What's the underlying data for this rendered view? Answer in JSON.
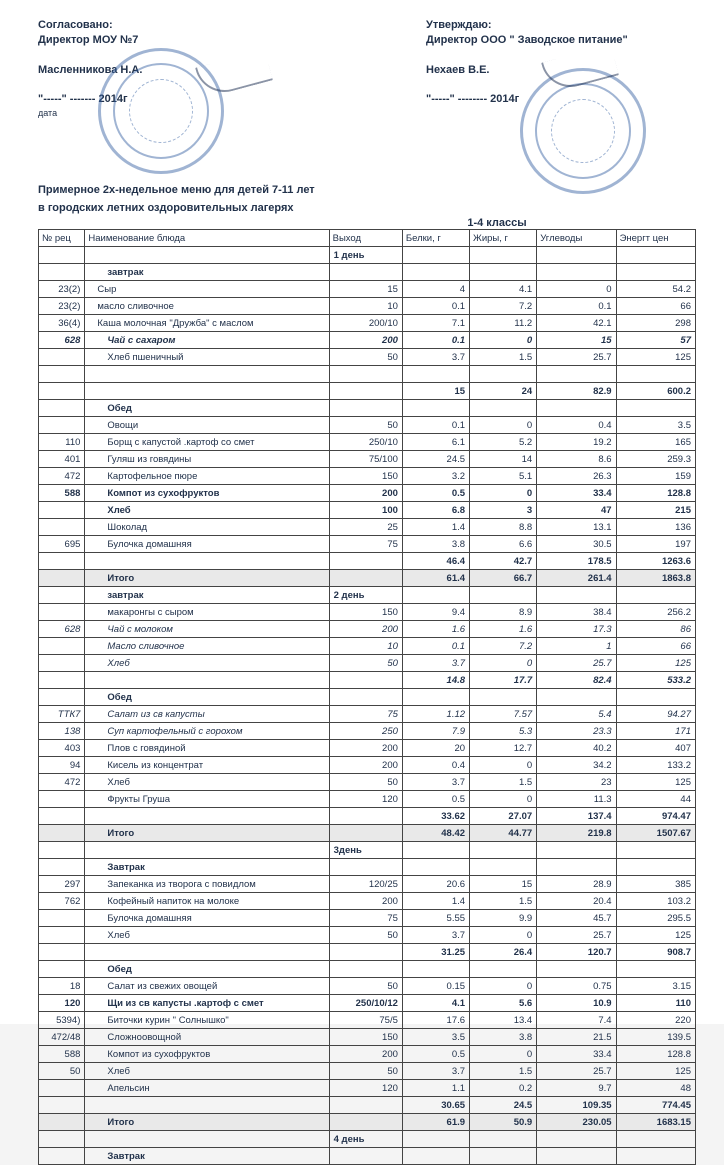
{
  "header": {
    "agreed_label": "Согласовано:",
    "director_mou": "Директор МОУ №7",
    "maslennikova": "Масленникова Н.А.",
    "date1": "\"-----\" ------- 2014г",
    "date_label": "дата",
    "approve_label": "Утверждаю:",
    "director_ooo": "Директор ООО \" Заводское питание\"",
    "nehaev": "Нехаев В.Е.",
    "date2": "\"-----\" -------- 2014г"
  },
  "titles": {
    "menu_line1": "Примерное 2х-недельное меню для детей 7-11 лет",
    "menu_line2": "в городских летних оздоровительных лагерях",
    "grade": "1-4 классы"
  },
  "columns": {
    "num": "№ рец",
    "name": "Наименование блюда",
    "out": "Выход",
    "p": "Белки, г",
    "f": "Жиры, г",
    "c": "Углеводы",
    "e": "Энергт цен"
  },
  "days": {
    "d1": "1 день",
    "d2": "2 день",
    "d3": "3день",
    "d4": "4 день"
  },
  "labels": {
    "breakfast": "завтрак",
    "breakfast_cap": "Завтрак",
    "lunch": "Обед",
    "total": "Итого"
  },
  "rows": [
    {
      "n": "23(2)",
      "name": "Сыр",
      "o": "15",
      "p": "4",
      "f": "4.1",
      "c": "0",
      "e": "54.2",
      "cls": "slight"
    },
    {
      "n": "23(2)",
      "name": "масло сливочное",
      "o": "10",
      "p": "0.1",
      "f": "7.2",
      "c": "0.1",
      "e": "66",
      "cls": "slight"
    },
    {
      "n": "36(4)",
      "name": "Каша молочная \"Дружба\" с маслом",
      "o": "200/10",
      "p": "7.1",
      "f": "11.2",
      "c": "42.1",
      "e": "298",
      "cls": "slight"
    },
    {
      "n": "628",
      "name": "Чай с сахаром",
      "o": "200",
      "p": "0.1",
      "f": "0",
      "c": "15",
      "e": "57",
      "cls": "indent em bold"
    },
    {
      "n": "",
      "name": "Хлеб пшеничный",
      "o": "50",
      "p": "3.7",
      "f": "1.5",
      "c": "25.7",
      "e": "125",
      "cls": "indent"
    },
    {
      "blank": true
    },
    {
      "n": "",
      "name": "",
      "o": "",
      "p": "15",
      "f": "24",
      "c": "82.9",
      "e": "600.2",
      "cls": "subtotal"
    },
    {
      "sec": "lunch"
    },
    {
      "n": "",
      "name": "Овощи",
      "o": "50",
      "p": "0.1",
      "f": "0",
      "c": "0.4",
      "e": "3.5",
      "cls": "indent"
    },
    {
      "n": "110",
      "name": "Борщ с капустой .картоф со смет",
      "o": "250/10",
      "p": "6.1",
      "f": "5.2",
      "c": "19.2",
      "e": "165",
      "cls": "indent"
    },
    {
      "n": "401",
      "name": "Гуляш из говядины",
      "o": "75/100",
      "p": "24.5",
      "f": "14",
      "c": "8.6",
      "e": "259.3",
      "cls": "indent"
    },
    {
      "n": "472",
      "name": "Картофельное пюре",
      "o": "150",
      "p": "3.2",
      "f": "5.1",
      "c": "26.3",
      "e": "159",
      "cls": "indent"
    },
    {
      "n": "588",
      "name": "Компот из сухофруктов",
      "o": "200",
      "p": "0.5",
      "f": "0",
      "c": "33.4",
      "e": "128.8",
      "cls": "indent bold"
    },
    {
      "n": "",
      "name": "Хлеб",
      "o": "100",
      "p": "6.8",
      "f": "3",
      "c": "47",
      "e": "215",
      "cls": "indent bold"
    },
    {
      "n": "",
      "name": "Шоколад",
      "o": "25",
      "p": "1.4",
      "f": "8.8",
      "c": "13.1",
      "e": "136",
      "cls": "indent"
    },
    {
      "n": "695",
      "name": "Булочка домашняя",
      "o": "75",
      "p": "3.8",
      "f": "6.6",
      "c": "30.5",
      "e": "197",
      "cls": "indent"
    },
    {
      "n": "",
      "name": "",
      "o": "",
      "p": "46.4",
      "f": "42.7",
      "c": "178.5",
      "e": "1263.6",
      "cls": "subtotal"
    },
    {
      "total": true,
      "p": "61.4",
      "f": "66.7",
      "c": "261.4",
      "e": "1863.8"
    },
    {
      "day": "d2",
      "sec": "breakfast"
    },
    {
      "n": "",
      "name": "макаронгы с сыром",
      "o": "150",
      "p": "9.4",
      "f": "8.9",
      "c": "38.4",
      "e": "256.2",
      "cls": "indent"
    },
    {
      "n": "628",
      "name": "Чай с молоком",
      "o": "200",
      "p": "1.6",
      "f": "1.6",
      "c": "17.3",
      "e": "86",
      "cls": "indent em"
    },
    {
      "n": "",
      "name": "Масло сливочное",
      "o": "10",
      "p": "0.1",
      "f": "7.2",
      "c": "1",
      "e": "66",
      "cls": "indent em"
    },
    {
      "n": "",
      "name": "Хлеб",
      "o": "50",
      "p": "3.7",
      "f": "0",
      "c": "25.7",
      "e": "125",
      "cls": "indent em"
    },
    {
      "n": "",
      "name": "",
      "o": "",
      "p": "14.8",
      "f": "17.7",
      "c": "82.4",
      "e": "533.2",
      "cls": "subtotal em"
    },
    {
      "sec": "lunch"
    },
    {
      "n": "ТТК7",
      "name": "Салат из св капусты",
      "o": "75",
      "p": "1.12",
      "f": "7.57",
      "c": "5.4",
      "e": "94.27",
      "cls": "indent em"
    },
    {
      "n": "138",
      "name": "Суп картофельный с горохом",
      "o": "250",
      "p": "7.9",
      "f": "5.3",
      "c": "23.3",
      "e": "171",
      "cls": "indent em"
    },
    {
      "n": "403",
      "name": "Плов с говядиной",
      "o": "200",
      "p": "20",
      "f": "12.7",
      "c": "40.2",
      "e": "407",
      "cls": "indent"
    },
    {
      "n": "94",
      "name": "Кисель из концентрат",
      "o": "200",
      "p": "0.4",
      "f": "0",
      "c": "34.2",
      "e": "133.2",
      "cls": "indent"
    },
    {
      "n": "472",
      "name": "Хлеб",
      "o": "50",
      "p": "3.7",
      "f": "1.5",
      "c": "23",
      "e": "125",
      "cls": "indent"
    },
    {
      "n": "",
      "name": "Фрукты   Груша",
      "o": "120",
      "p": "0.5",
      "f": "0",
      "c": "11.3",
      "e": "44",
      "cls": "indent"
    },
    {
      "n": "",
      "name": "",
      "o": "",
      "p": "33.62",
      "f": "27.07",
      "c": "137.4",
      "e": "974.47",
      "cls": "subtotal"
    },
    {
      "total": true,
      "p": "48.42",
      "f": "44.77",
      "c": "219.8",
      "e": "1507.67"
    },
    {
      "dayrow": "d3"
    },
    {
      "sec": "breakfast_cap"
    },
    {
      "n": "297",
      "name": "Запеканка из творога с повидлом",
      "o": "120/25",
      "p": "20.6",
      "f": "15",
      "c": "28.9",
      "e": "385",
      "cls": "indent"
    },
    {
      "n": "762",
      "name": "Кофейный напиток на молоке",
      "o": "200",
      "p": "1.4",
      "f": "1.5",
      "c": "20.4",
      "e": "103.2",
      "cls": "indent"
    },
    {
      "n": "",
      "name": "Булочка домашняя",
      "o": "75",
      "p": "5.55",
      "f": "9.9",
      "c": "45.7",
      "e": "295.5",
      "cls": "indent"
    },
    {
      "n": "",
      "name": "Хлеб",
      "o": "50",
      "p": "3.7",
      "f": "0",
      "c": "25.7",
      "e": "125",
      "cls": "indent"
    },
    {
      "n": "",
      "name": "",
      "o": "",
      "p": "31.25",
      "f": "26.4",
      "c": "120.7",
      "e": "908.7",
      "cls": "subtotal"
    },
    {
      "sec": "lunch"
    },
    {
      "n": "18",
      "name": "Салат из свежих овощей",
      "o": "50",
      "p": "0.15",
      "f": "0",
      "c": "0.75",
      "e": "3.15",
      "cls": "indent"
    },
    {
      "n": "120",
      "name": "Щи из св капусты .картоф с смет",
      "o": "250/10/12",
      "p": "4.1",
      "f": "5.6",
      "c": "10.9",
      "e": "110",
      "cls": "indent bold"
    },
    {
      "n": "5394)",
      "name": "Биточки курин \" Солнышко\"",
      "o": "75/5",
      "p": "17.6",
      "f": "13.4",
      "c": "7.4",
      "e": "220",
      "cls": "indent"
    },
    {
      "n": "472/48",
      "name": "Сложноовощной",
      "o": "150",
      "p": "3.5",
      "f": "3.8",
      "c": "21.5",
      "e": "139.5",
      "cls": "indent"
    },
    {
      "n": "588",
      "name": "Компот из сухофруктов",
      "o": "200",
      "p": "0.5",
      "f": "0",
      "c": "33.4",
      "e": "128.8",
      "cls": "indent"
    },
    {
      "n": "50",
      "name": "Хлеб",
      "o": "50",
      "p": "3.7",
      "f": "1.5",
      "c": "25.7",
      "e": "125",
      "cls": "indent"
    },
    {
      "n": "",
      "name": "Апельсин",
      "o": "120",
      "p": "1.1",
      "f": "0.2",
      "c": "9.7",
      "e": "48",
      "cls": "indent"
    },
    {
      "n": "",
      "name": "",
      "o": "",
      "p": "30.65",
      "f": "24.5",
      "c": "109.35",
      "e": "774.45",
      "cls": "subtotal"
    },
    {
      "total": true,
      "p": "61.9",
      "f": "50.9",
      "c": "230.05",
      "e": "1683.15"
    },
    {
      "dayrow": "d4"
    },
    {
      "sec": "breakfast_cap"
    }
  ]
}
